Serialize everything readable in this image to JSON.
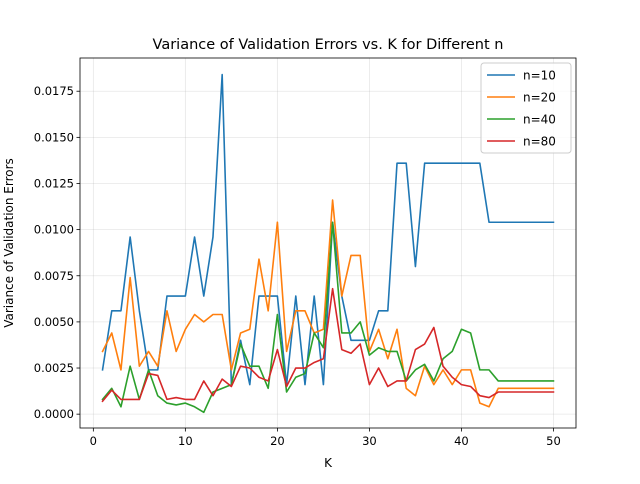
{
  "chart_data": {
    "type": "line",
    "title": "Variance of Validation Errors vs. K for Different n",
    "xlabel": "K",
    "ylabel": "Variance of Validation Errors",
    "xlim": [
      -1.45,
      52.45
    ],
    "ylim": [
      -0.00075,
      0.0193
    ],
    "xticks": [
      0,
      10,
      20,
      30,
      40,
      50
    ],
    "yticks": [
      0.0,
      0.0025,
      0.005,
      0.0075,
      0.01,
      0.0125,
      0.015,
      0.0175
    ],
    "ytick_labels": [
      "0.0000",
      "0.0025",
      "0.0050",
      "0.0075",
      "0.0100",
      "0.0125",
      "0.0150",
      "0.0175"
    ],
    "grid": true,
    "legend_position": "top-right",
    "x": [
      1,
      2,
      3,
      4,
      5,
      6,
      7,
      8,
      9,
      10,
      11,
      12,
      13,
      14,
      15,
      16,
      17,
      18,
      19,
      20,
      21,
      22,
      23,
      24,
      25,
      26,
      27,
      28,
      29,
      30,
      31,
      32,
      33,
      34,
      35,
      36,
      37,
      38,
      39,
      40,
      41,
      42,
      43,
      44,
      45,
      46,
      47,
      48,
      49,
      50
    ],
    "series": [
      {
        "name": "n=10",
        "color": "#1f77b4",
        "values": [
          0.0024,
          0.0056,
          0.0056,
          0.0096,
          0.0056,
          0.0024,
          0.0024,
          0.0064,
          0.0064,
          0.0064,
          0.0096,
          0.0064,
          0.0096,
          0.0184,
          0.0016,
          0.004,
          0.0016,
          0.0064,
          0.0064,
          0.0064,
          0.0016,
          0.0064,
          0.0016,
          0.0064,
          0.0016,
          0.0104,
          0.0064,
          0.004,
          0.004,
          0.004,
          0.0056,
          0.0056,
          0.0136,
          0.0136,
          0.008,
          0.0136,
          0.0136,
          0.0136,
          0.0136,
          0.0136,
          0.0136,
          0.0136,
          0.0104,
          0.0104,
          0.0104,
          0.0104,
          0.0104,
          0.0104,
          0.0104,
          0.0104
        ]
      },
      {
        "name": "n=20",
        "color": "#ff7f0e",
        "values": [
          0.0034,
          0.0044,
          0.0024,
          0.0074,
          0.0026,
          0.0034,
          0.0026,
          0.0056,
          0.0034,
          0.0046,
          0.0054,
          0.005,
          0.0054,
          0.0054,
          0.0024,
          0.0044,
          0.0046,
          0.0084,
          0.0056,
          0.0104,
          0.0034,
          0.0056,
          0.0056,
          0.0044,
          0.0046,
          0.0116,
          0.0064,
          0.0086,
          0.0086,
          0.0034,
          0.0046,
          0.003,
          0.0046,
          0.0014,
          0.001,
          0.0026,
          0.0016,
          0.0024,
          0.0016,
          0.0024,
          0.0024,
          0.0006,
          0.0004,
          0.0014,
          0.0014,
          0.0014,
          0.0014,
          0.0014,
          0.0014,
          0.0014
        ]
      },
      {
        "name": "n=40",
        "color": "#2ca02c",
        "values": [
          0.0008,
          0.0014,
          0.0004,
          0.0026,
          0.0008,
          0.0024,
          0.001,
          0.0006,
          0.0005,
          0.0006,
          0.0004,
          0.0001,
          0.0012,
          0.0014,
          0.0016,
          0.0038,
          0.0026,
          0.0026,
          0.0014,
          0.0054,
          0.0012,
          0.002,
          0.0022,
          0.0044,
          0.0036,
          0.0104,
          0.0044,
          0.0044,
          0.005,
          0.0032,
          0.0036,
          0.0034,
          0.0034,
          0.0018,
          0.0024,
          0.0027,
          0.0018,
          0.003,
          0.0034,
          0.0046,
          0.0044,
          0.0024,
          0.0024,
          0.0018,
          0.0018,
          0.0018,
          0.0018,
          0.0018,
          0.0018,
          0.0018
        ]
      },
      {
        "name": "n=80",
        "color": "#d62728",
        "values": [
          0.0007,
          0.0013,
          0.0008,
          0.0008,
          0.0008,
          0.0022,
          0.0021,
          0.0008,
          0.0009,
          0.0008,
          0.0008,
          0.0018,
          0.001,
          0.0019,
          0.0015,
          0.0026,
          0.0025,
          0.002,
          0.0018,
          0.0035,
          0.0015,
          0.0025,
          0.0025,
          0.0028,
          0.003,
          0.0068,
          0.0035,
          0.0033,
          0.0038,
          0.0016,
          0.0025,
          0.0015,
          0.0018,
          0.0018,
          0.0035,
          0.0038,
          0.0047,
          0.0026,
          0.002,
          0.0016,
          0.0015,
          0.001,
          0.0009,
          0.0012,
          0.0012,
          0.0012,
          0.0012,
          0.0012,
          0.0012,
          0.0012
        ]
      }
    ]
  }
}
